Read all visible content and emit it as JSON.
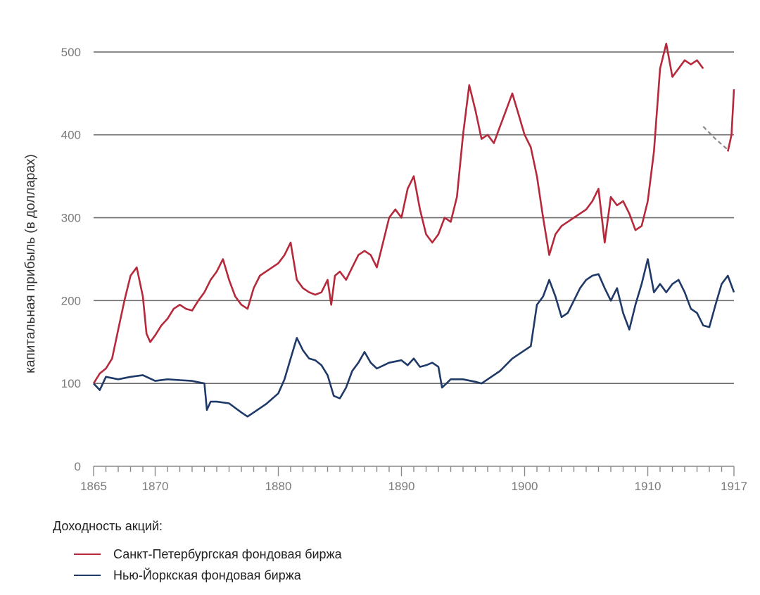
{
  "chart_data": {
    "type": "line",
    "title": "",
    "xlabel": "",
    "ylabel": "капитальная прибыль (в долларах)",
    "xlim": [
      1865,
      1917
    ],
    "ylim": [
      0,
      550
    ],
    "x_ticks": [
      "1865",
      "1870",
      "1880",
      "1890",
      "1900",
      "1910",
      "1917"
    ],
    "y_ticks": [
      "0",
      "100",
      "200",
      "300",
      "400",
      "500"
    ],
    "grid": "horizontal",
    "legend_position": "bottom-left",
    "legend_title": "Доходность акций:",
    "series": [
      {
        "name": "Санкт-Петербургская фондовая биржа",
        "color": "#b5293b",
        "x": [
          1865,
          1865.5,
          1866,
          1866.5,
          1867,
          1867.5,
          1868,
          1868.5,
          1869,
          1869.3,
          1869.6,
          1870,
          1870.5,
          1871,
          1871.5,
          1872,
          1872.5,
          1873,
          1873.5,
          1874,
          1874.5,
          1875,
          1875.5,
          1876,
          1876.5,
          1877,
          1877.5,
          1878,
          1878.5,
          1879,
          1879.5,
          1880,
          1880.5,
          1881,
          1881.5,
          1882,
          1882.5,
          1883,
          1883.5,
          1884,
          1884.3,
          1884.6,
          1885,
          1885.5,
          1886,
          1886.5,
          1887,
          1887.5,
          1888,
          1888.5,
          1889,
          1889.5,
          1890,
          1890.5,
          1891,
          1891.5,
          1892,
          1892.5,
          1893,
          1893.5,
          1894,
          1894.5,
          1895,
          1895.5,
          1896,
          1896.5,
          1897,
          1897.5,
          1898,
          1898.5,
          1899,
          1899.5,
          1900,
          1900.5,
          1901,
          1901.5,
          1902,
          1902.5,
          1903,
          1903.5,
          1904,
          1904.5,
          1905,
          1905.5,
          1906,
          1906.5,
          1907,
          1907.5,
          1908,
          1908.5,
          1909,
          1909.5,
          1910,
          1910.5,
          1911,
          1911.5,
          1912,
          1912.5,
          1913,
          1913.5,
          1914,
          1914.5
        ],
        "values": [
          100,
          112,
          118,
          130,
          165,
          200,
          230,
          240,
          205,
          160,
          150,
          158,
          170,
          178,
          190,
          195,
          190,
          188,
          200,
          210,
          225,
          235,
          250,
          225,
          205,
          195,
          190,
          215,
          230,
          235,
          240,
          245,
          255,
          270,
          225,
          215,
          210,
          207,
          210,
          225,
          195,
          230,
          235,
          225,
          240,
          255,
          260,
          255,
          240,
          270,
          300,
          310,
          300,
          335,
          350,
          310,
          280,
          270,
          280,
          300,
          295,
          325,
          400,
          460,
          430,
          395,
          400,
          390,
          410,
          430,
          450,
          425,
          400,
          385,
          350,
          300,
          255,
          280,
          290,
          295,
          300,
          305,
          310,
          320,
          335,
          270,
          325,
          315,
          320,
          305,
          285,
          290,
          320,
          380,
          480,
          510,
          470,
          480,
          490,
          485,
          490,
          480
        ]
      },
      {
        "name": "",
        "color": "#8a8a8a",
        "x": [
          1914.5,
          1915.5,
          1916.5
        ],
        "values": [
          410,
          395,
          382
        ]
      },
      {
        "name": "",
        "color": "#b5293b",
        "x": [
          1916.5,
          1916.8,
          1917
        ],
        "values": [
          380,
          400,
          455
        ]
      },
      {
        "name": "Нью-Йоркская фондовая биржа",
        "color": "#1f3a68",
        "x": [
          1865,
          1865.5,
          1866,
          1867,
          1868,
          1869,
          1870,
          1871,
          1872,
          1873,
          1874,
          1874.2,
          1874.5,
          1875,
          1876,
          1877,
          1877.5,
          1878,
          1879,
          1880,
          1880.5,
          1881,
          1881.5,
          1882,
          1882.5,
          1883,
          1883.5,
          1884,
          1884.5,
          1885,
          1885.5,
          1886,
          1886.5,
          1887,
          1887.5,
          1888,
          1889,
          1890,
          1890.5,
          1891,
          1891.5,
          1892,
          1892.5,
          1893,
          1893.3,
          1894,
          1895,
          1896,
          1896.5,
          1897,
          1898,
          1899,
          1900,
          1900.5,
          1901,
          1901.5,
          1902,
          1902.5,
          1903,
          1903.5,
          1904,
          1904.5,
          1905,
          1905.5,
          1906,
          1906.5,
          1907,
          1907.5,
          1908,
          1908.5,
          1909,
          1909.5,
          1910,
          1910.5,
          1911,
          1911.5,
          1912,
          1912.5,
          1913,
          1913.5,
          1914,
          1914.5,
          1915,
          1915.5,
          1916,
          1916.5,
          1917
        ],
        "values": [
          100,
          92,
          108,
          105,
          108,
          110,
          103,
          105,
          104,
          103,
          100,
          68,
          78,
          78,
          76,
          65,
          60,
          65,
          75,
          88,
          105,
          130,
          155,
          140,
          130,
          128,
          122,
          110,
          85,
          82,
          95,
          115,
          125,
          138,
          125,
          118,
          125,
          128,
          122,
          130,
          120,
          122,
          125,
          120,
          95,
          105,
          105,
          102,
          100,
          105,
          115,
          130,
          140,
          145,
          195,
          205,
          225,
          205,
          180,
          185,
          200,
          215,
          225,
          230,
          232,
          215,
          200,
          215,
          185,
          165,
          195,
          220,
          250,
          210,
          220,
          210,
          220,
          225,
          210,
          190,
          185,
          170,
          168,
          195,
          220,
          230,
          210
        ]
      }
    ]
  }
}
